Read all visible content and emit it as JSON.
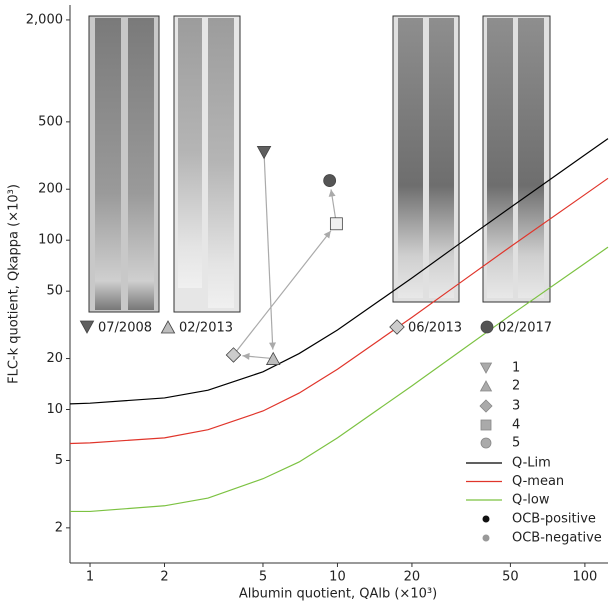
{
  "chart_data": {
    "type": "scatter",
    "x_label": "Albumin quotient, QAlb (×10³)",
    "y_label": "FLC-k quotient, Qkappa (×10³)",
    "log_x": true,
    "log_y": true,
    "xlim": [
      0.83,
      124
    ],
    "ylim": [
      1.24,
      2450
    ],
    "xticks": [
      1,
      2,
      5,
      10,
      20,
      50,
      100
    ],
    "yticks": [
      2,
      5,
      10,
      20,
      50,
      100,
      200,
      500,
      {
        "value": 2000,
        "label": "2,000"
      }
    ],
    "series": [
      {
        "name": "1",
        "marker": "triangle-down",
        "color": "#5f5f5f",
        "x": [
          5.05
        ],
        "values": [
          330
        ]
      },
      {
        "name": "2",
        "marker": "triangle-up",
        "color": "#bdbdbd",
        "x": [
          5.5
        ],
        "values": [
          20
        ]
      },
      {
        "name": "3",
        "marker": "diamond",
        "color": "#cccccc",
        "x": [
          3.8
        ],
        "values": [
          21
        ]
      },
      {
        "name": "4",
        "marker": "square",
        "color": "#f0f0f0",
        "x": [
          9.9
        ],
        "values": [
          125
        ]
      },
      {
        "name": "5",
        "marker": "circle",
        "color": "#555555",
        "x": [
          9.3
        ],
        "values": [
          225
        ]
      }
    ],
    "lines": [
      {
        "name": "Q-Lim",
        "color": "#000000",
        "x": [
          0.83,
          1,
          2,
          3,
          5,
          7,
          10,
          20,
          30,
          50,
          100,
          124
        ],
        "values": [
          10.8,
          10.9,
          11.7,
          13.0,
          16.7,
          21.4,
          29.5,
          59.8,
          91.7,
          156,
          319,
          398
        ]
      },
      {
        "name": "Q-mean",
        "color": "#e0352b",
        "x": [
          0.83,
          1,
          2,
          3,
          5,
          7,
          10,
          20,
          30,
          50,
          100,
          124
        ],
        "values": [
          6.3,
          6.35,
          6.8,
          7.6,
          9.8,
          12.5,
          17.3,
          35,
          53.6,
          91.5,
          186,
          232
        ]
      },
      {
        "name": "Q-low",
        "color": "#7cc242",
        "x": [
          0.83,
          1,
          2,
          3,
          5,
          7,
          10,
          20,
          30,
          50,
          100,
          124
        ],
        "values": [
          2.5,
          2.5,
          2.7,
          3.0,
          3.9,
          4.9,
          6.8,
          13.8,
          21.1,
          36,
          73,
          91
        ]
      }
    ],
    "ocb_legend": [
      {
        "name": "OCB-positive",
        "color": "#111111"
      },
      {
        "name": "OCB-negative",
        "color": "#999999"
      }
    ],
    "gels": [
      {
        "label": "07/2008"
      },
      {
        "label": "02/2013"
      },
      {
        "label": "06/2013"
      },
      {
        "label": "02/2017"
      }
    ]
  }
}
